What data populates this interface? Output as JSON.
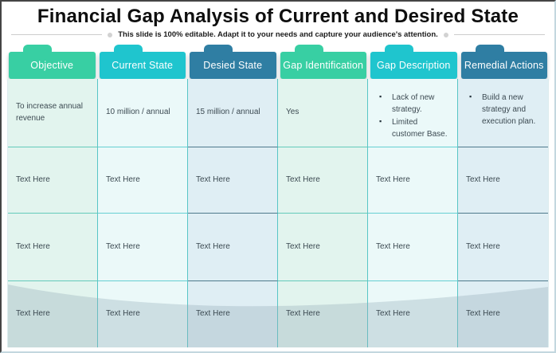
{
  "slide": {
    "title": "Financial Gap Analysis of Current and Desired State",
    "subtitle": "This slide is 100% editable. Adapt it to your needs and capture your audience's attention."
  },
  "colors": {
    "tab_green": "#38CFA3",
    "tab_cyan": "#1FC5CE",
    "tab_blue": "#2F7EA3",
    "cell_green": "#E2F4EE",
    "cell_cyan": "#EBF9F9",
    "cell_blue": "#DFEEF4",
    "grid_line": "#57C5C6",
    "row_line_green": "#63CABA",
    "row_line_cyan": "#66CFD2",
    "row_line_blue": "#4E7A8C",
    "wave_fill": "#92A9B6",
    "subtitle_line": "#CCCCCC"
  },
  "table": {
    "columns": [
      {
        "label": "Objective",
        "theme": "green"
      },
      {
        "label": "Current State",
        "theme": "cyan"
      },
      {
        "label": "Desied State",
        "theme": "blue"
      },
      {
        "label": "Gap Identification",
        "theme": "green"
      },
      {
        "label": "Gap Description",
        "theme": "cyan"
      },
      {
        "label": "Remedial Actions",
        "theme": "blue"
      }
    ],
    "rows": [
      {
        "cells": [
          {
            "text": "To increase annual revenue"
          },
          {
            "text": "10 million / annual"
          },
          {
            "text": "15 million / annual"
          },
          {
            "text": "Yes"
          },
          {
            "bullets": [
              "Lack of new strategy.",
              "Limited customer Base."
            ]
          },
          {
            "bullets": [
              "Build a new strategy and execution plan."
            ]
          }
        ]
      },
      {
        "cells": [
          {
            "text": "Text Here"
          },
          {
            "text": "Text Here"
          },
          {
            "text": "Text Here"
          },
          {
            "text": "Text Here"
          },
          {
            "text": "Text Here"
          },
          {
            "text": "Text Here"
          }
        ]
      },
      {
        "cells": [
          {
            "text": "Text Here"
          },
          {
            "text": "Text Here"
          },
          {
            "text": "Text Here"
          },
          {
            "text": "Text Here"
          },
          {
            "text": "Text Here"
          },
          {
            "text": "Text Here"
          }
        ]
      },
      {
        "cells": [
          {
            "text": "Text Here"
          },
          {
            "text": "Text Here"
          },
          {
            "text": "Text Here"
          },
          {
            "text": "Text Here"
          },
          {
            "text": "Text Here"
          },
          {
            "text": "Text Here"
          }
        ]
      }
    ]
  }
}
